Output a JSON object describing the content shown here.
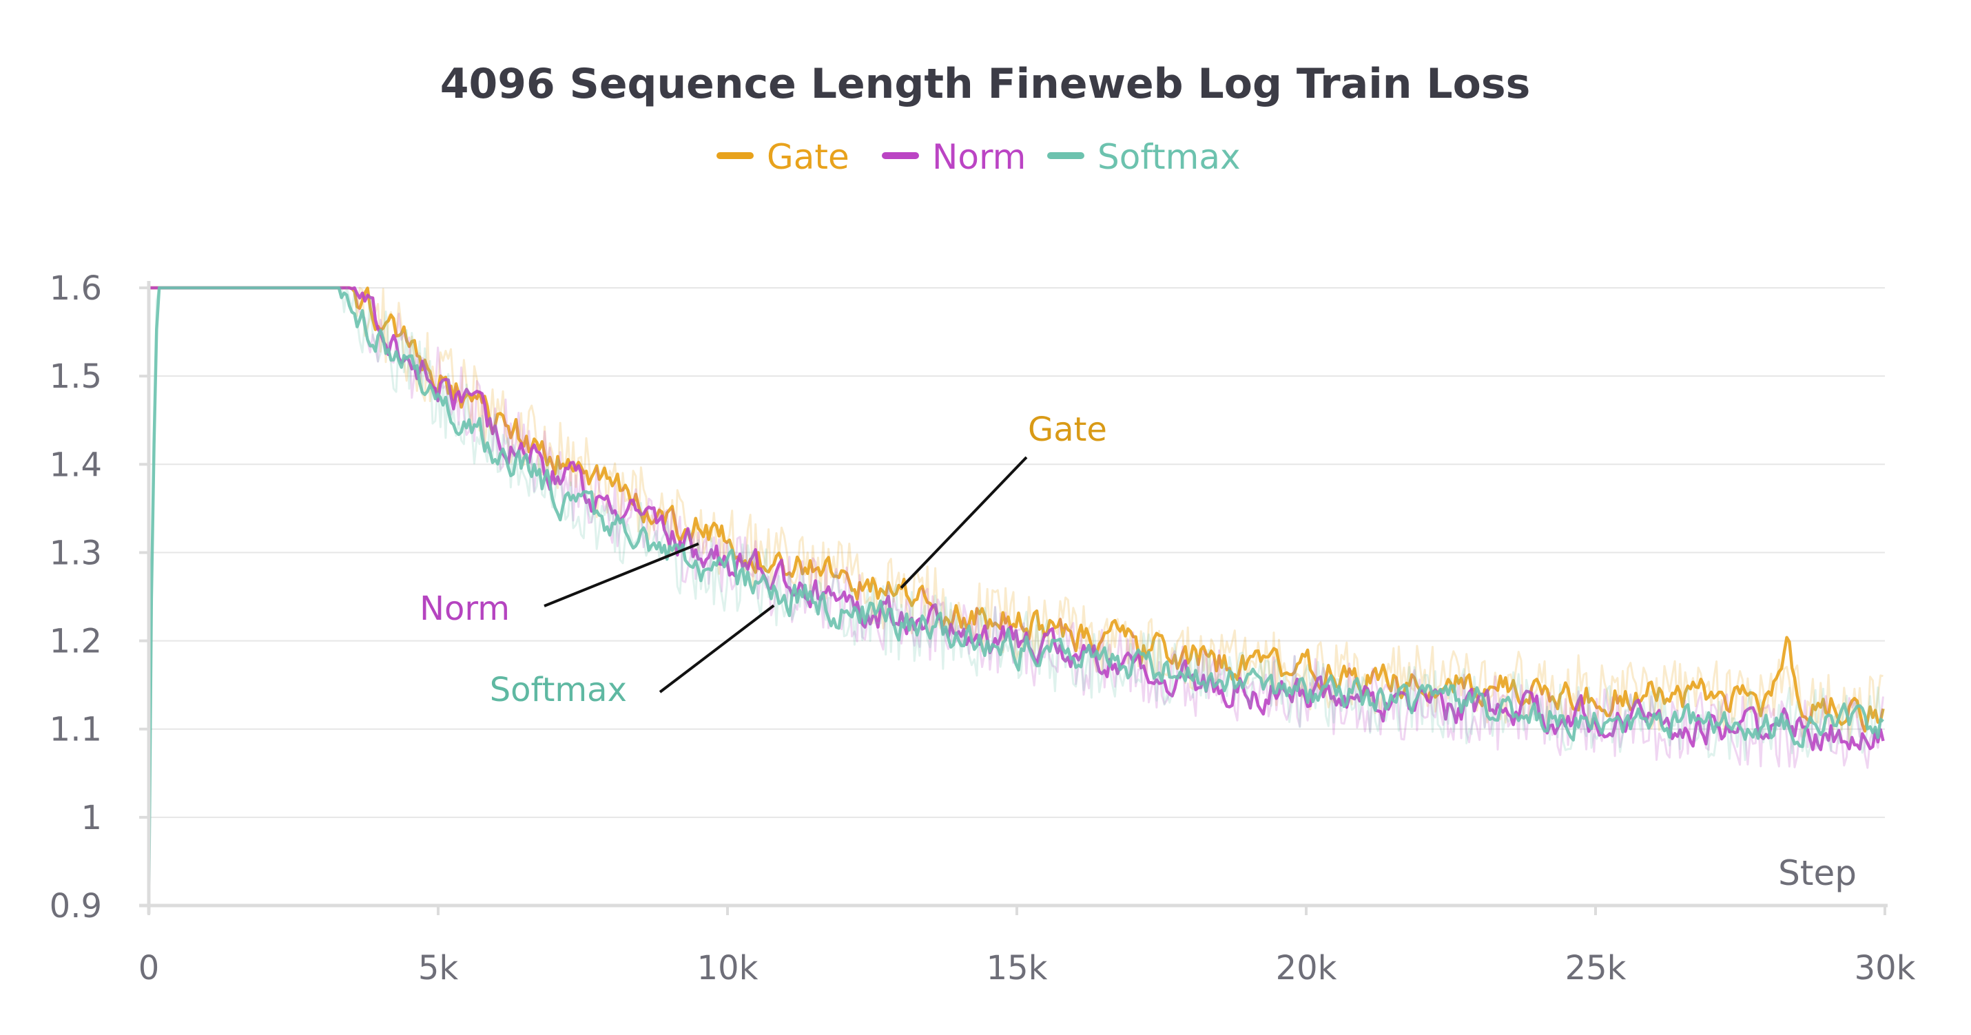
{
  "chart_data": {
    "type": "line",
    "title": "4096 Sequence Length Fineweb Log Train Loss",
    "xlabel": "Step",
    "ylabel": "",
    "xlim": [
      0,
      30000
    ],
    "ylim": [
      0.9,
      1.6
    ],
    "grid": true,
    "legend": "top-center",
    "xticks": [
      0,
      5000,
      10000,
      15000,
      20000,
      25000,
      30000
    ],
    "xtick_labels": [
      "0",
      "5k",
      "10k",
      "15k",
      "20k",
      "25k",
      "30k"
    ],
    "yticks": [
      0.9,
      1.0,
      1.1,
      1.2,
      1.3,
      1.4,
      1.5,
      1.6
    ],
    "ytick_labels": [
      "0.9",
      "1",
      "1.1",
      "1.2",
      "1.3",
      "1.4",
      "1.5",
      "1.6"
    ],
    "series": [
      {
        "name": "Gate",
        "color": "#e8a21c",
        "x": [
          0,
          3300,
          3500,
          4000,
          5000,
          6000,
          7000,
          8000,
          9000,
          10000,
          11000,
          12000,
          13000,
          14000,
          15000,
          16000,
          17000,
          18000,
          19000,
          20000,
          21000,
          22000,
          23000,
          24000,
          25000,
          26000,
          27000,
          28000,
          28300,
          28500,
          29000,
          30000
        ],
        "values": [
          1.6,
          1.6,
          1.6,
          1.56,
          1.5,
          1.45,
          1.41,
          1.37,
          1.34,
          1.31,
          1.29,
          1.27,
          1.25,
          1.235,
          1.22,
          1.21,
          1.195,
          1.18,
          1.17,
          1.165,
          1.16,
          1.155,
          1.15,
          1.145,
          1.14,
          1.14,
          1.135,
          1.13,
          1.2,
          1.13,
          1.125,
          1.12
        ]
      },
      {
        "name": "Norm",
        "color": "#bb44c4",
        "x": [
          0,
          3300,
          3500,
          4000,
          5000,
          6000,
          7000,
          8000,
          9000,
          10000,
          11000,
          12000,
          13000,
          14000,
          15000,
          16000,
          17000,
          18000,
          19000,
          20000,
          21000,
          22000,
          23000,
          24000,
          25000,
          26000,
          27000,
          28000,
          29000,
          30000
        ],
        "values": [
          1.6,
          1.6,
          1.6,
          1.55,
          1.49,
          1.44,
          1.39,
          1.35,
          1.315,
          1.29,
          1.265,
          1.245,
          1.225,
          1.21,
          1.195,
          1.18,
          1.17,
          1.155,
          1.145,
          1.14,
          1.13,
          1.125,
          1.12,
          1.115,
          1.11,
          1.105,
          1.1,
          1.1,
          1.095,
          1.1
        ]
      },
      {
        "name": "Softmax",
        "color": "#6cc2ae",
        "x": [
          0,
          50,
          150,
          3300,
          3500,
          4000,
          5000,
          6000,
          7000,
          8000,
          9000,
          10000,
          11000,
          12000,
          13000,
          14000,
          15000,
          16000,
          17000,
          18000,
          19000,
          20000,
          21000,
          22000,
          23000,
          24000,
          25000,
          26000,
          27000,
          28000,
          29000,
          30000
        ],
        "values": [
          0.9,
          1.3,
          1.6,
          1.6,
          1.58,
          1.54,
          1.48,
          1.42,
          1.37,
          1.33,
          1.3,
          1.275,
          1.255,
          1.235,
          1.22,
          1.205,
          1.195,
          1.18,
          1.17,
          1.16,
          1.15,
          1.14,
          1.135,
          1.13,
          1.125,
          1.12,
          1.115,
          1.11,
          1.11,
          1.105,
          1.105,
          1.11
        ]
      }
    ],
    "annotations": [
      {
        "text": "Gate",
        "color": "#d99a16",
        "series": "Gate",
        "point": [
          13000,
          1.26
        ]
      },
      {
        "text": "Norm",
        "color": "#b544c0",
        "series": "Norm",
        "point": [
          9500,
          1.31
        ]
      },
      {
        "text": "Softmax",
        "color": "#5fb8a2",
        "series": "Softmax",
        "point": [
          10800,
          1.24
        ]
      }
    ]
  }
}
